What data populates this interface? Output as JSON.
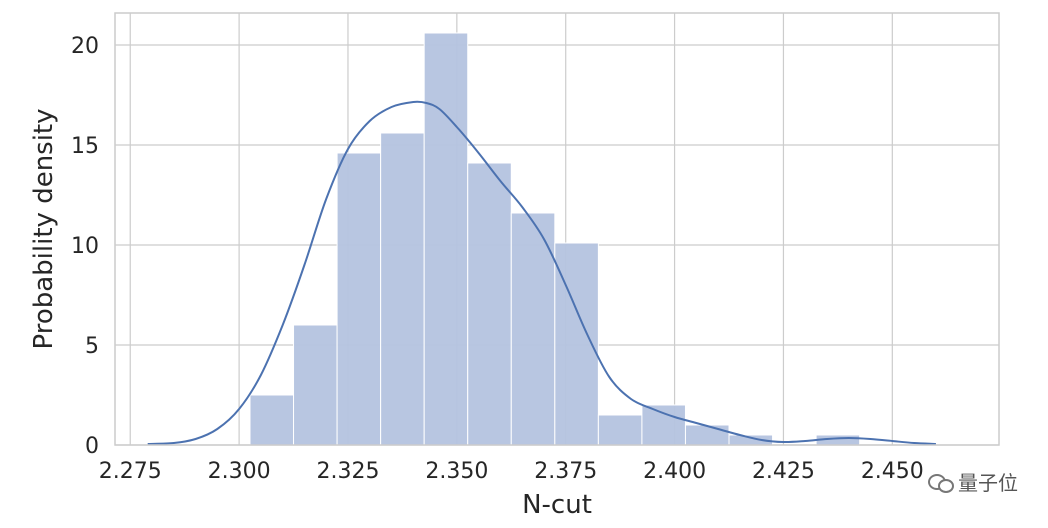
{
  "chart_data": {
    "type": "bar",
    "subtype": "histogram_with_kde",
    "title": "",
    "xlabel": "N-cut",
    "ylabel": "Probability density",
    "xlim": [
      2.2715,
      2.4745
    ],
    "ylim": [
      0,
      21.6
    ],
    "x_ticks": [
      2.275,
      2.3,
      2.325,
      2.35,
      2.375,
      2.4,
      2.425,
      2.45
    ],
    "x_tick_labels": [
      "2.275",
      "2.300",
      "2.325",
      "2.350",
      "2.375",
      "2.400",
      "2.425",
      "2.450"
    ],
    "y_ticks": [
      0,
      5,
      10,
      15,
      20
    ],
    "y_tick_labels": [
      "0",
      "5",
      "10",
      "15",
      "20"
    ],
    "grid": true,
    "colors": {
      "bars": "#b4c3df",
      "kde": "#4c72b0",
      "grid": "#cccccc",
      "frame": "#cccccc"
    },
    "bins": [
      {
        "x0": 2.3025,
        "x1": 2.3125,
        "value": 2.5
      },
      {
        "x0": 2.3125,
        "x1": 2.3225,
        "value": 6.0
      },
      {
        "x0": 2.3225,
        "x1": 2.3325,
        "value": 14.6
      },
      {
        "x0": 2.3325,
        "x1": 2.3425,
        "value": 15.6
      },
      {
        "x0": 2.3425,
        "x1": 2.3525,
        "value": 20.6
      },
      {
        "x0": 2.3525,
        "x1": 2.3625,
        "value": 14.1
      },
      {
        "x0": 2.3625,
        "x1": 2.3725,
        "value": 11.6
      },
      {
        "x0": 2.3725,
        "x1": 2.3825,
        "value": 10.1
      },
      {
        "x0": 2.3825,
        "x1": 2.3925,
        "value": 1.5
      },
      {
        "x0": 2.3925,
        "x1": 2.4025,
        "value": 2.0
      },
      {
        "x0": 2.4025,
        "x1": 2.4125,
        "value": 1.0
      },
      {
        "x0": 2.4125,
        "x1": 2.4225,
        "value": 0.5
      },
      {
        "x0": 2.4225,
        "x1": 2.4325,
        "value": 0.0
      },
      {
        "x0": 2.4325,
        "x1": 2.4425,
        "value": 0.5
      }
    ],
    "kde": {
      "x": [
        2.279,
        2.285,
        2.29,
        2.295,
        2.3,
        2.305,
        2.31,
        2.315,
        2.32,
        2.325,
        2.33,
        2.335,
        2.34,
        2.343,
        2.346,
        2.35,
        2.355,
        2.36,
        2.365,
        2.37,
        2.375,
        2.38,
        2.385,
        2.39,
        2.395,
        2.4,
        2.405,
        2.41,
        2.415,
        2.42,
        2.425,
        2.43,
        2.435,
        2.44,
        2.445,
        2.45,
        2.455,
        2.46
      ],
      "y": [
        0.05,
        0.1,
        0.3,
        0.8,
        1.8,
        3.5,
        6.0,
        9.0,
        12.3,
        14.8,
        16.2,
        16.9,
        17.15,
        17.1,
        16.8,
        15.9,
        14.6,
        13.2,
        11.9,
        10.3,
        8.0,
        5.5,
        3.4,
        2.3,
        1.8,
        1.4,
        1.1,
        0.8,
        0.5,
        0.25,
        0.15,
        0.2,
        0.3,
        0.35,
        0.3,
        0.2,
        0.1,
        0.05
      ]
    }
  },
  "watermark": {
    "text": "量子位",
    "icon": "wechat-icon"
  }
}
